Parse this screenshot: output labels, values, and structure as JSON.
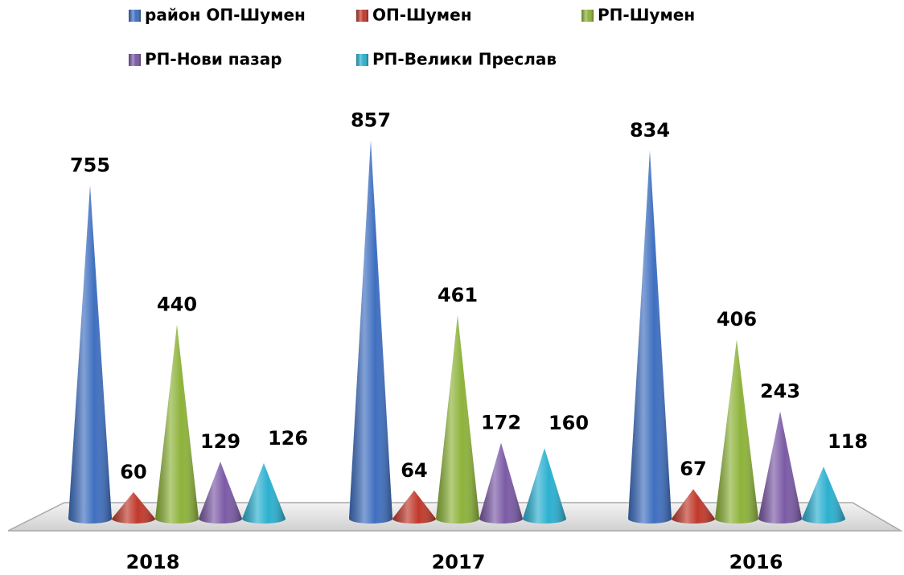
{
  "chart_data": {
    "type": "cone",
    "categories": [
      "2018",
      "2017",
      "2016"
    ],
    "series": [
      {
        "name": "район ОП-Шумен",
        "color": "#3f6fc0",
        "values": [
          755,
          857,
          834
        ]
      },
      {
        "name": "ОП-Шумен",
        "color": "#c0392b",
        "values": [
          60,
          64,
          67
        ]
      },
      {
        "name": "РП-Шумен",
        "color": "#8db33a",
        "values": [
          440,
          461,
          406
        ]
      },
      {
        "name": "РП-Нови пазар",
        "color": "#7b5aa6",
        "values": [
          129,
          172,
          243
        ]
      },
      {
        "name": "РП-Велики Преслав",
        "color": "#2bb0d0",
        "values": [
          126,
          160,
          118
        ]
      }
    ]
  }
}
